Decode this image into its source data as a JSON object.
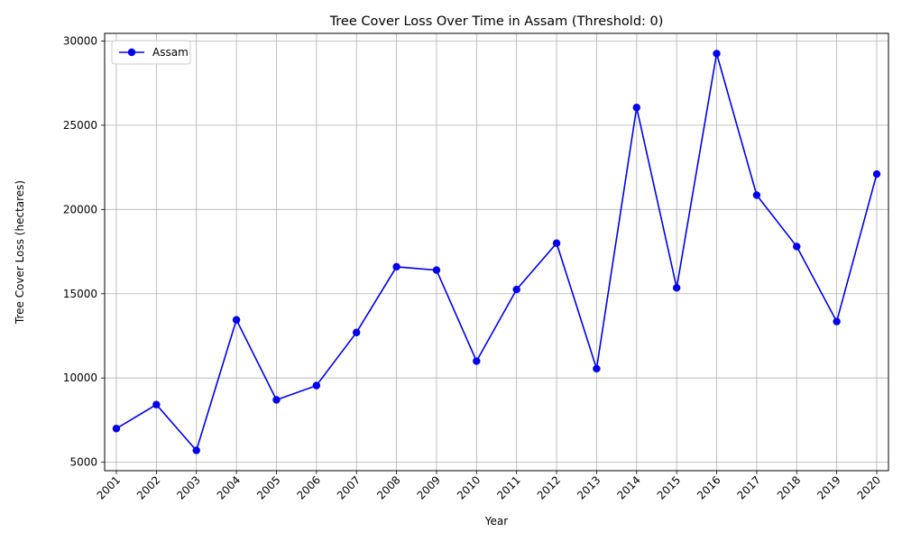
{
  "chart_data": {
    "type": "line",
    "title": "Tree Cover Loss Over Time in Assam (Threshold: 0)",
    "xlabel": "Year",
    "ylabel": "Tree Cover Loss (hectares)",
    "categories": [
      "2001",
      "2002",
      "2003",
      "2004",
      "2005",
      "2006",
      "2007",
      "2008",
      "2009",
      "2010",
      "2011",
      "2012",
      "2013",
      "2014",
      "2015",
      "2016",
      "2017",
      "2018",
      "2019",
      "2020"
    ],
    "series": [
      {
        "name": "Assam",
        "color": "#0000ee",
        "marker": "circle",
        "values": [
          7000,
          8420,
          5700,
          13450,
          8700,
          9550,
          12700,
          16600,
          16400,
          11000,
          15250,
          18000,
          10550,
          26050,
          15350,
          29250,
          20850,
          17800,
          13350,
          22100
        ]
      }
    ],
    "yticks": [
      5000,
      10000,
      15000,
      20000,
      25000,
      30000
    ],
    "ylim": [
      4500,
      30450
    ],
    "grid": true,
    "legend_position": "top-left"
  }
}
